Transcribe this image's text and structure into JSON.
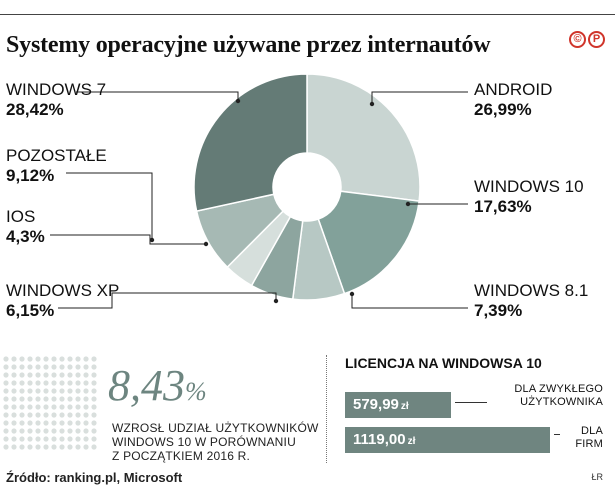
{
  "title": "Systemy operacyjne używane przez internautów",
  "logo": [
    "©",
    "P"
  ],
  "chart_data": {
    "type": "pie",
    "title": "Systemy operacyjne używane przez internautów",
    "slices": [
      {
        "name": "ANDROID",
        "value": 26.99,
        "label": "26,99%",
        "color": "#c9d5d2"
      },
      {
        "name": "WINDOWS 10",
        "value": 17.63,
        "label": "17,63%",
        "color": "#82a19a"
      },
      {
        "name": "WINDOWS 8.1",
        "value": 7.39,
        "label": "7,39%",
        "color": "#b7c8c4"
      },
      {
        "name": "WINDOWS XP",
        "value": 6.15,
        "label": "6,15%",
        "color": "#8da59f"
      },
      {
        "name": "IOS",
        "value": 4.3,
        "label": "4,3%",
        "color": "#d6dfdc"
      },
      {
        "name": "POZOSTAŁE",
        "value": 9.12,
        "label": "9,12%",
        "color": "#a6b9b4"
      },
      {
        "name": "WINDOWS 7",
        "value": 28.42,
        "label": "28,42%",
        "color": "#647b76"
      }
    ],
    "start_angle_deg": 0,
    "direction": "clockwise"
  },
  "highlight": {
    "value": "8,43",
    "pct": "%",
    "desc": [
      "WZROSŁ UDZIAŁ UŻYTKOWNIKÓW",
      "WINDOWS 10 W PORÓWNANIU",
      "Z POCZĄTKIEM 2016 R."
    ]
  },
  "license": {
    "title": "LICENCJA NA WINDOWSA 10",
    "bars": [
      {
        "value": 579.99,
        "value_text": "579,99",
        "unit": "zł",
        "label": [
          "DLA ZWYKŁEGO",
          "UŻYTKOWNIKA"
        ]
      },
      {
        "value": 1119.0,
        "value_text": "1119,00",
        "unit": "zł",
        "label": [
          "DLA",
          "FIRM"
        ]
      }
    ],
    "color": "#6f8580"
  },
  "source": "Źródło: ranking.pl, Microsoft",
  "initials": "ŁR"
}
